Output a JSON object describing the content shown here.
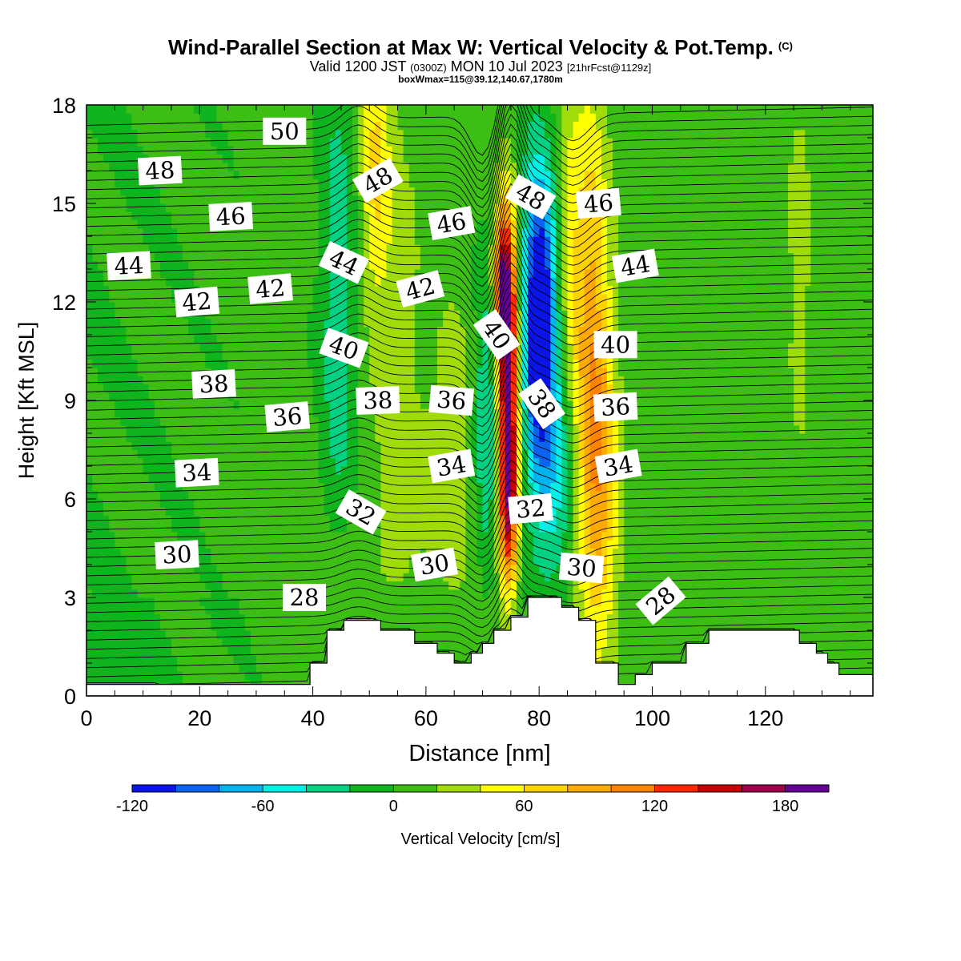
{
  "header": {
    "title": "Wind-Parallel Section at Max W: Vertical Velocity & Pot.Temp.",
    "copyright": "(C)",
    "valid_a": "Valid 1200 JST",
    "valid_utc": "(0300Z)",
    "valid_b": "MON 10 Jul 2023",
    "forecast": "[21hrFcst@1129z]",
    "boxwmax": "boxWmax=115@39.12,140.67,1780m"
  },
  "chart_data": {
    "type": "heatmap",
    "xlabel": "Distance [nm]",
    "ylabel": "Height [Kft MSL]",
    "xlim": [
      0,
      139
    ],
    "ylim": [
      0,
      18
    ],
    "x_ticks": [
      "0",
      "20",
      "40",
      "60",
      "80",
      "100",
      "120"
    ],
    "y_ticks": [
      "0",
      "3",
      "6",
      "9",
      "12",
      "15",
      "18"
    ],
    "colorbar": {
      "label": "Vertical Velocity [cm/s]",
      "tick_labels": [
        "-120",
        "-60",
        "0",
        "60",
        "120",
        "180"
      ],
      "colors": [
        "#0a14e6",
        "#0a64f0",
        "#00b4f0",
        "#00f0e6",
        "#00d282",
        "#0fb41e",
        "#3cbe14",
        "#a0dc0a",
        "#ffff00",
        "#ffd200",
        "#ffaa00",
        "#ff8200",
        "#ff2800",
        "#c80000",
        "#a0004b",
        "#640096"
      ]
    },
    "terrain_kft": [
      [
        0,
        0.35
      ],
      [
        39.5,
        0.35
      ],
      [
        39.5,
        1.0
      ],
      [
        42.5,
        1.0
      ],
      [
        42.5,
        2.0
      ],
      [
        45.5,
        2.0
      ],
      [
        45.5,
        2.3
      ],
      [
        52,
        2.3
      ],
      [
        52,
        2.0
      ],
      [
        58,
        2.0
      ],
      [
        58,
        1.6
      ],
      [
        62,
        1.6
      ],
      [
        62,
        1.3
      ],
      [
        65,
        1.3
      ],
      [
        65,
        1.0
      ],
      [
        68,
        1.0
      ],
      [
        68,
        1.3
      ],
      [
        70,
        1.3
      ],
      [
        70,
        1.6
      ],
      [
        72,
        1.6
      ],
      [
        72,
        2.0
      ],
      [
        75,
        2.0
      ],
      [
        75,
        2.4
      ],
      [
        78,
        2.4
      ],
      [
        78,
        3.0
      ],
      [
        84,
        3.0
      ],
      [
        84,
        2.7
      ],
      [
        87,
        2.7
      ],
      [
        87,
        2.3
      ],
      [
        90,
        2.3
      ],
      [
        90,
        1.0
      ],
      [
        94,
        1.0
      ],
      [
        94,
        0.35
      ],
      [
        97,
        0.35
      ],
      [
        97,
        0.65
      ],
      [
        100,
        0.65
      ],
      [
        100,
        1.0
      ],
      [
        106,
        1.0
      ],
      [
        106,
        1.6
      ],
      [
        110,
        1.6
      ],
      [
        110,
        2.0
      ],
      [
        126,
        2.0
      ],
      [
        126,
        1.6
      ],
      [
        129,
        1.6
      ],
      [
        129,
        1.3
      ],
      [
        131,
        1.3
      ],
      [
        131,
        1.0
      ],
      [
        133,
        1.0
      ],
      [
        133,
        0.65
      ],
      [
        139,
        0.65
      ]
    ],
    "w_features": [
      {
        "x": 74.5,
        "y": 9.5,
        "sx": 1.4,
        "sy": 3.5,
        "w": 190
      },
      {
        "x": 73.5,
        "y": 12.5,
        "sx": 1.2,
        "sy": 1.5,
        "w": 110
      },
      {
        "x": 74.5,
        "y": 5.5,
        "sx": 1.2,
        "sy": 1.5,
        "w": 80
      },
      {
        "x": 80,
        "y": 11.5,
        "sx": 2.2,
        "sy": 3.2,
        "w": -150
      },
      {
        "x": 71,
        "y": 8.5,
        "sx": 1.8,
        "sy": 3.0,
        "w": -60
      },
      {
        "x": 83,
        "y": 6.5,
        "sx": 3.0,
        "sy": 2.5,
        "w": -45
      },
      {
        "x": 89,
        "y": 11,
        "sx": 2.5,
        "sy": 5.5,
        "w": 80
      },
      {
        "x": 91,
        "y": 6,
        "sx": 2.5,
        "sy": 3.5,
        "w": 55
      },
      {
        "x": 51,
        "y": 16,
        "sx": 1.8,
        "sy": 3.0,
        "w": 55
      },
      {
        "x": 44.5,
        "y": 11.5,
        "sx": 2.0,
        "sy": 5.5,
        "w": -40
      },
      {
        "x": 65,
        "y": 7.5,
        "sx": 3.5,
        "sy": 3.5,
        "w": 30
      },
      {
        "x": 55,
        "y": 12,
        "sx": 3.0,
        "sy": 5.0,
        "w": 25
      },
      {
        "x": 44,
        "y": 3.2,
        "sx": 3.0,
        "sy": 1.5,
        "w": 25
      },
      {
        "x": 55,
        "y": 5.5,
        "sx": 4.0,
        "sy": 2.0,
        "w": 18
      },
      {
        "x": 126,
        "y": 13,
        "sx": 1.5,
        "sy": 4.0,
        "w": 30
      },
      {
        "x": 85,
        "y": 14,
        "sx": 1.5,
        "sy": 3.0,
        "w": 30
      }
    ],
    "theta_labels": [
      {
        "text": "50",
        "x": 35,
        "y": 17.2,
        "rot": 0
      },
      {
        "text": "48",
        "x": 13,
        "y": 16.0,
        "rot": -3
      },
      {
        "text": "48",
        "x": 51.5,
        "y": 15.7,
        "rot": -30
      },
      {
        "text": "48",
        "x": 78.5,
        "y": 15.2,
        "rot": 30
      },
      {
        "text": "46",
        "x": 25.5,
        "y": 14.6,
        "rot": -3
      },
      {
        "text": "46",
        "x": 64.5,
        "y": 14.4,
        "rot": -10
      },
      {
        "text": "46",
        "x": 90.5,
        "y": 15.0,
        "rot": -5
      },
      {
        "text": "44",
        "x": 7.5,
        "y": 13.1,
        "rot": -3
      },
      {
        "text": "44",
        "x": 45.5,
        "y": 13.2,
        "rot": 25
      },
      {
        "text": "44",
        "x": 97,
        "y": 13.1,
        "rot": -10
      },
      {
        "text": "42",
        "x": 19.5,
        "y": 12.0,
        "rot": -5
      },
      {
        "text": "42",
        "x": 32.5,
        "y": 12.4,
        "rot": -5
      },
      {
        "text": "42",
        "x": 59,
        "y": 12.4,
        "rot": -15
      },
      {
        "text": "40",
        "x": 45.5,
        "y": 10.6,
        "rot": 20
      },
      {
        "text": "40",
        "x": 72.5,
        "y": 11.0,
        "rot": 55
      },
      {
        "text": "40",
        "x": 93.5,
        "y": 10.7,
        "rot": 0
      },
      {
        "text": "38",
        "x": 22.5,
        "y": 9.5,
        "rot": -3
      },
      {
        "text": "38",
        "x": 51.5,
        "y": 9.0,
        "rot": -2
      },
      {
        "text": "38",
        "x": 80.5,
        "y": 8.9,
        "rot": 55
      },
      {
        "text": "36",
        "x": 35.5,
        "y": 8.5,
        "rot": -5
      },
      {
        "text": "36",
        "x": 64.5,
        "y": 9.0,
        "rot": 5
      },
      {
        "text": "36",
        "x": 93.5,
        "y": 8.8,
        "rot": -3
      },
      {
        "text": "34",
        "x": 19.5,
        "y": 6.8,
        "rot": -3
      },
      {
        "text": "34",
        "x": 64.5,
        "y": 7.0,
        "rot": -10
      },
      {
        "text": "34",
        "x": 94,
        "y": 7.0,
        "rot": -10
      },
      {
        "text": "32",
        "x": 48.5,
        "y": 5.6,
        "rot": 30
      },
      {
        "text": "32",
        "x": 78.5,
        "y": 5.7,
        "rot": -5
      },
      {
        "text": "30",
        "x": 16,
        "y": 4.3,
        "rot": -3
      },
      {
        "text": "30",
        "x": 61.5,
        "y": 4.0,
        "rot": -10
      },
      {
        "text": "30",
        "x": 87.5,
        "y": 3.9,
        "rot": 5
      },
      {
        "text": "28",
        "x": 38.5,
        "y": 3.0,
        "rot": 0
      },
      {
        "text": "28",
        "x": 101.5,
        "y": 2.9,
        "rot": -40
      }
    ]
  }
}
